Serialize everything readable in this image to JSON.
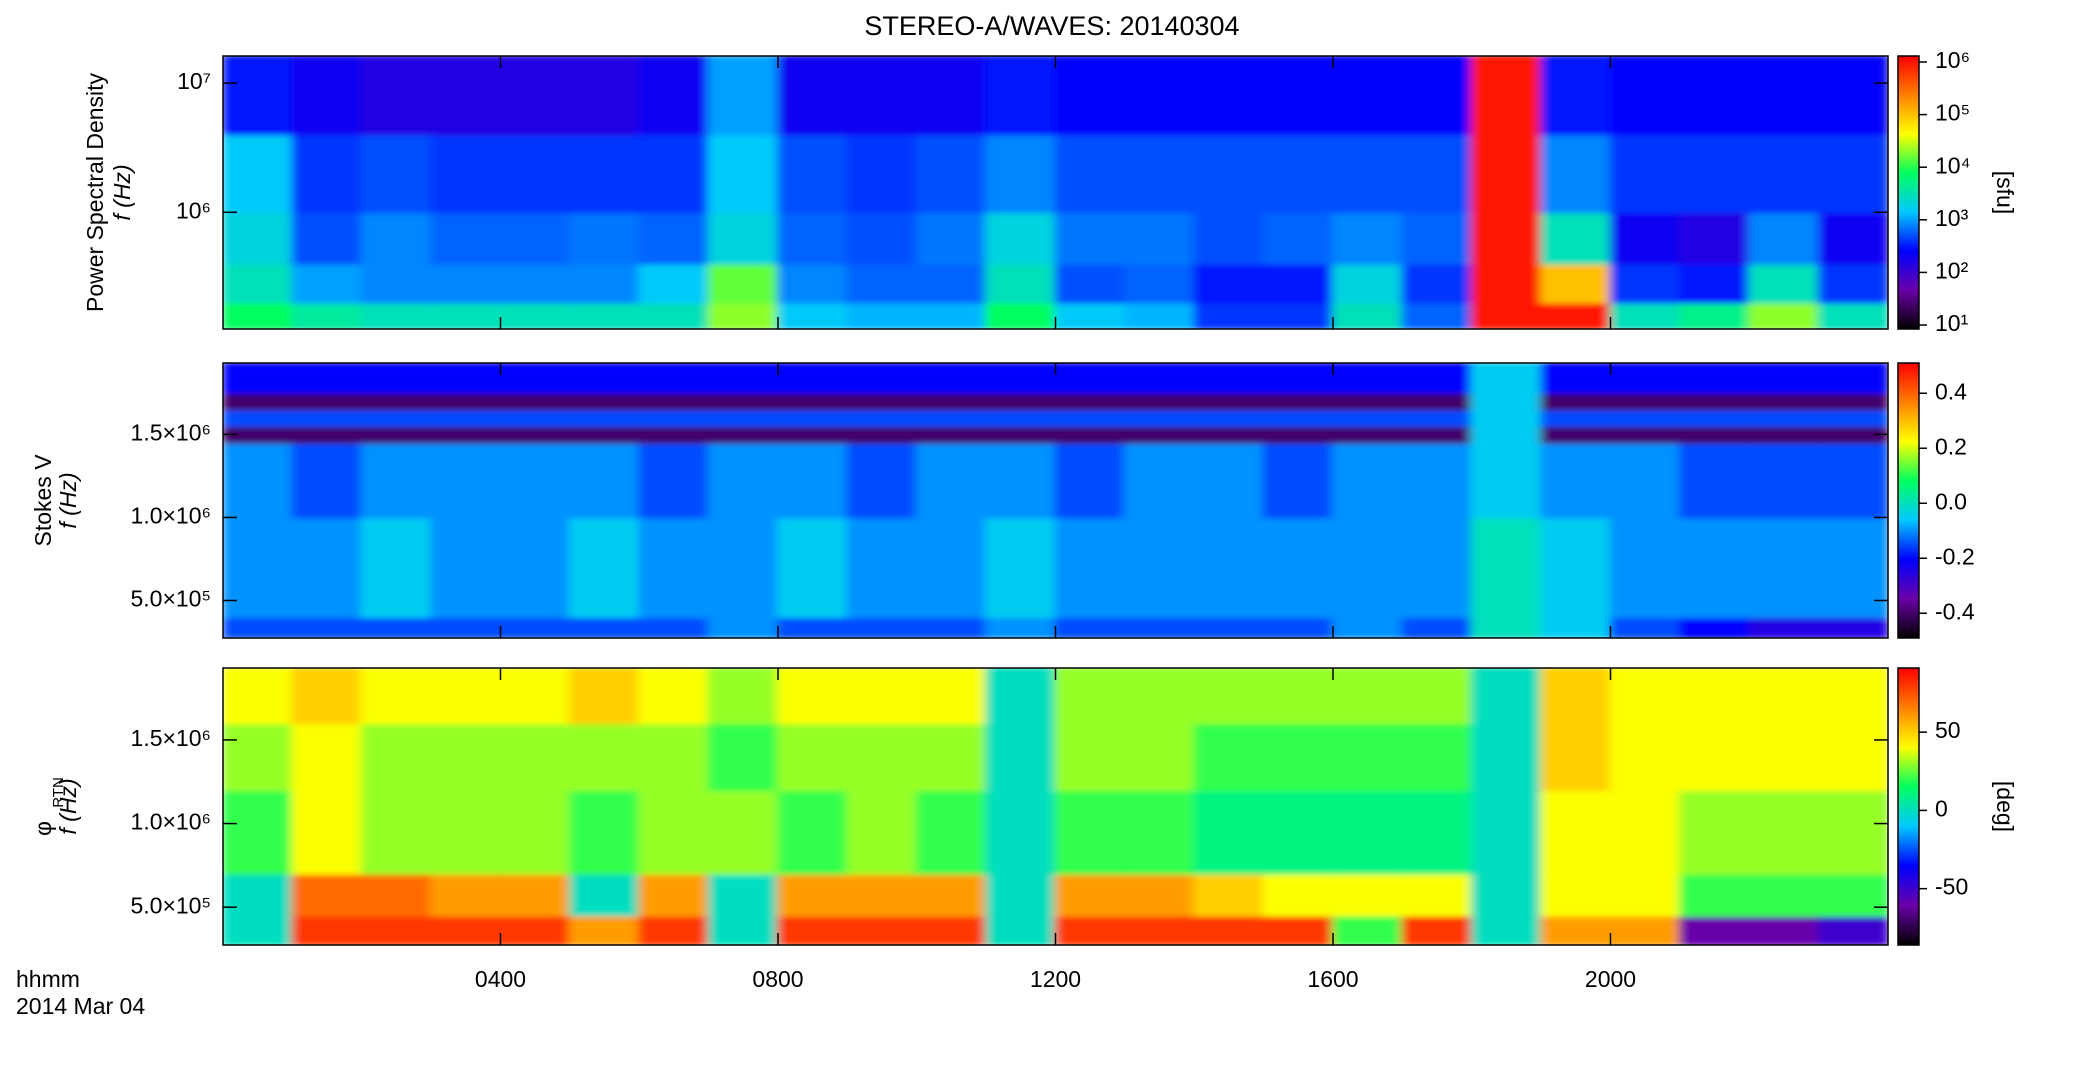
{
  "chart_data": [
    {
      "type": "heatmap",
      "title": "STEREO-A/WAVES: 20140304",
      "ylabel": "Power Spectral Density",
      "ylabel2": "f (Hz)",
      "clabel": "[sfu]",
      "ylog": true,
      "ylim": [
        125000,
        16200000
      ],
      "yticks": [
        {
          "value": 1000000,
          "label": "10⁶"
        },
        {
          "value": 10000000,
          "label": "10⁷"
        }
      ],
      "clog": true,
      "clim": [
        8.4,
        1300000
      ],
      "cticks": [
        {
          "value": 10,
          "label": "10¹"
        },
        {
          "value": 100,
          "label": "10²"
        },
        {
          "value": 1000,
          "label": "10³"
        },
        {
          "value": 10000,
          "label": "10⁴"
        },
        {
          "value": 100000,
          "label": "10⁵"
        },
        {
          "value": 1000000,
          "label": "10⁶"
        }
      ],
      "colormap": [
        "#000000",
        "#6a00a8",
        "#0000ff",
        "#00c8ff",
        "#00ff60",
        "#ffff00",
        "#ff8000",
        "#ff0000"
      ],
      "x": [
        0.5,
        1.5,
        2.5,
        3.5,
        4.5,
        5.5,
        6.5,
        7.5,
        8.5,
        9.5,
        10.5,
        11.5,
        12.5,
        13.5,
        14.5,
        15.5,
        16.5,
        17.5,
        18.5,
        19.5,
        20.5,
        21.5,
        22.5,
        23.5
      ],
      "ybins": [
        125000,
        200000,
        400000,
        1000000,
        4000000,
        16200000
      ],
      "z": [
        [
          8000,
          4000,
          3000,
          3000,
          3000,
          3000,
          3000,
          20000,
          1500,
          1200,
          1200,
          8000,
          1500,
          1200,
          400,
          400,
          3000,
          600,
          1000000,
          1000000,
          3000,
          5000,
          20000,
          3000
        ],
        [
          3000,
          1000,
          800,
          800,
          800,
          800,
          1500,
          15000,
          800,
          600,
          600,
          3000,
          500,
          600,
          300,
          300,
          2000,
          400,
          1000000,
          100000,
          400,
          300,
          3000,
          400
        ],
        [
          2000,
          500,
          800,
          600,
          600,
          700,
          600,
          2000,
          600,
          500,
          700,
          2000,
          700,
          700,
          500,
          600,
          800,
          600,
          1000000,
          3000,
          200,
          150,
          800,
          200
        ],
        [
          1500,
          400,
          500,
          400,
          400,
          400,
          400,
          1500,
          500,
          400,
          500,
          800,
          500,
          500,
          500,
          500,
          500,
          500,
          1000000,
          800,
          400,
          400,
          400,
          400
        ],
        [
          300,
          200,
          150,
          150,
          150,
          150,
          200,
          1000,
          200,
          200,
          200,
          300,
          250,
          250,
          250,
          250,
          250,
          250,
          1000000,
          300,
          250,
          250,
          250,
          250
        ]
      ]
    },
    {
      "type": "heatmap",
      "ylabel": "Stokes V",
      "ylabel2": "f (Hz)",
      "ylog": false,
      "ylim": [
        274000,
        1930000
      ],
      "yticks": [
        {
          "value": 500000,
          "label": "5.0×10⁵"
        },
        {
          "value": 1000000,
          "label": "1.0×10⁶"
        },
        {
          "value": 1500000,
          "label": "1.5×10⁶"
        }
      ],
      "clog": false,
      "clim": [
        -0.49,
        0.51
      ],
      "cticks": [
        -0.4,
        -0.2,
        {
          "value": 0,
          "label": "0.0"
        },
        0.2,
        0.4
      ],
      "colormap": [
        "#000000",
        "#6a00a8",
        "#0000ff",
        "#00c8ff",
        "#00ff60",
        "#ffff00",
        "#ff8000",
        "#ff0000"
      ],
      "x": [
        0.5,
        1.5,
        2.5,
        3.5,
        4.5,
        5.5,
        6.5,
        7.5,
        8.5,
        9.5,
        10.5,
        11.5,
        12.5,
        13.5,
        14.5,
        15.5,
        16.5,
        17.5,
        18.5,
        19.5,
        20.5,
        21.5,
        22.5,
        23.5
      ],
      "ybins": [
        274000,
        400000,
        1000000,
        1450000,
        1550000,
        1650000,
        1750000,
        1930000
      ],
      "z": [
        [
          -0.15,
          -0.15,
          -0.15,
          -0.15,
          -0.15,
          -0.15,
          -0.15,
          -0.1,
          -0.15,
          -0.15,
          -0.15,
          -0.1,
          -0.15,
          -0.15,
          -0.15,
          -0.15,
          -0.1,
          -0.15,
          0,
          -0.05,
          -0.15,
          -0.2,
          -0.25,
          -0.25
        ],
        [
          -0.1,
          -0.1,
          -0.05,
          -0.1,
          -0.1,
          -0.05,
          -0.1,
          -0.1,
          -0.05,
          -0.1,
          -0.1,
          -0.05,
          -0.1,
          -0.1,
          -0.1,
          -0.1,
          -0.1,
          -0.1,
          0,
          -0.05,
          -0.1,
          -0.1,
          -0.1,
          -0.1
        ],
        [
          -0.1,
          -0.15,
          -0.1,
          -0.1,
          -0.1,
          -0.1,
          -0.15,
          -0.1,
          -0.1,
          -0.15,
          -0.1,
          -0.1,
          -0.15,
          -0.1,
          -0.1,
          -0.15,
          -0.1,
          -0.1,
          -0.05,
          -0.1,
          -0.1,
          -0.15,
          -0.15,
          -0.15
        ],
        [
          -0.4,
          -0.4,
          -0.4,
          -0.4,
          -0.4,
          -0.4,
          -0.4,
          -0.4,
          -0.4,
          -0.4,
          -0.4,
          -0.4,
          -0.4,
          -0.4,
          -0.4,
          -0.4,
          -0.4,
          -0.4,
          -0.05,
          -0.4,
          -0.4,
          -0.4,
          -0.4,
          -0.4
        ],
        [
          -0.15,
          -0.15,
          -0.15,
          -0.15,
          -0.15,
          -0.15,
          -0.15,
          -0.15,
          -0.15,
          -0.15,
          -0.15,
          -0.15,
          -0.15,
          -0.15,
          -0.15,
          -0.15,
          -0.15,
          -0.15,
          -0.05,
          -0.15,
          -0.15,
          -0.15,
          -0.15,
          -0.15
        ],
        [
          -0.4,
          -0.4,
          -0.4,
          -0.4,
          -0.4,
          -0.4,
          -0.4,
          -0.4,
          -0.4,
          -0.4,
          -0.4,
          -0.4,
          -0.4,
          -0.4,
          -0.4,
          -0.4,
          -0.4,
          -0.4,
          -0.05,
          -0.4,
          -0.4,
          -0.4,
          -0.4,
          -0.4
        ],
        [
          -0.2,
          -0.2,
          -0.2,
          -0.2,
          -0.2,
          -0.2,
          -0.2,
          -0.2,
          -0.2,
          -0.2,
          -0.2,
          -0.2,
          -0.2,
          -0.2,
          -0.2,
          -0.2,
          -0.2,
          -0.2,
          -0.05,
          -0.2,
          -0.2,
          -0.2,
          -0.2,
          -0.2
        ]
      ]
    },
    {
      "type": "heatmap",
      "ylabel": "φ",
      "ylabel_sub": "RTN",
      "ylabel2": "f (Hz)",
      "clabel": "[deg]",
      "xlabel": "hhmm",
      "xlabel2": "2014 Mar 04",
      "xlim": [
        0,
        24
      ],
      "xticks": [
        {
          "value": 4,
          "label": "0400"
        },
        {
          "value": 8,
          "label": "0800"
        },
        {
          "value": 12,
          "label": "1200"
        },
        {
          "value": 16,
          "label": "1600"
        },
        {
          "value": 20,
          "label": "2000"
        }
      ],
      "ylog": false,
      "ylim": [
        274000,
        1930000
      ],
      "yticks": [
        {
          "value": 500000,
          "label": "5.0×10⁵"
        },
        {
          "value": 1000000,
          "label": "1.0×10⁶"
        },
        {
          "value": 1500000,
          "label": "1.5×10⁶"
        }
      ],
      "clog": false,
      "clim": [
        -86,
        91
      ],
      "cticks": [
        -50,
        0,
        50
      ],
      "colormap": [
        "#000000",
        "#6a00a8",
        "#0000ff",
        "#00c8ff",
        "#00ff60",
        "#ffff00",
        "#ff8000",
        "#ff0000"
      ],
      "x": [
        0.5,
        1.5,
        2.5,
        3.5,
        4.5,
        5.5,
        6.5,
        7.5,
        8.5,
        9.5,
        10.5,
        11.5,
        12.5,
        13.5,
        14.5,
        15.5,
        16.5,
        17.5,
        18.5,
        19.5,
        20.5,
        21.5,
        22.5,
        23.5
      ],
      "ybins": [
        274000,
        450000,
        700000,
        1200000,
        1600000,
        1930000
      ],
      "z": [
        [
          0,
          80,
          80,
          80,
          80,
          60,
          80,
          0,
          80,
          80,
          80,
          0,
          80,
          80,
          80,
          80,
          20,
          80,
          0,
          60,
          60,
          -60,
          -60,
          -50
        ],
        [
          0,
          70,
          70,
          60,
          60,
          0,
          60,
          0,
          60,
          60,
          60,
          0,
          60,
          60,
          50,
          40,
          40,
          40,
          0,
          40,
          40,
          20,
          20,
          20
        ],
        [
          20,
          40,
          30,
          30,
          30,
          20,
          30,
          30,
          20,
          30,
          20,
          0,
          20,
          20,
          10,
          10,
          10,
          10,
          0,
          40,
          40,
          30,
          30,
          30
        ],
        [
          30,
          40,
          30,
          30,
          30,
          30,
          30,
          20,
          30,
          30,
          30,
          0,
          30,
          30,
          20,
          20,
          20,
          20,
          0,
          50,
          40,
          40,
          40,
          40
        ],
        [
          40,
          50,
          40,
          40,
          40,
          50,
          40,
          30,
          40,
          40,
          40,
          0,
          30,
          30,
          30,
          30,
          30,
          30,
          0,
          50,
          40,
          40,
          40,
          40
        ]
      ]
    }
  ]
}
